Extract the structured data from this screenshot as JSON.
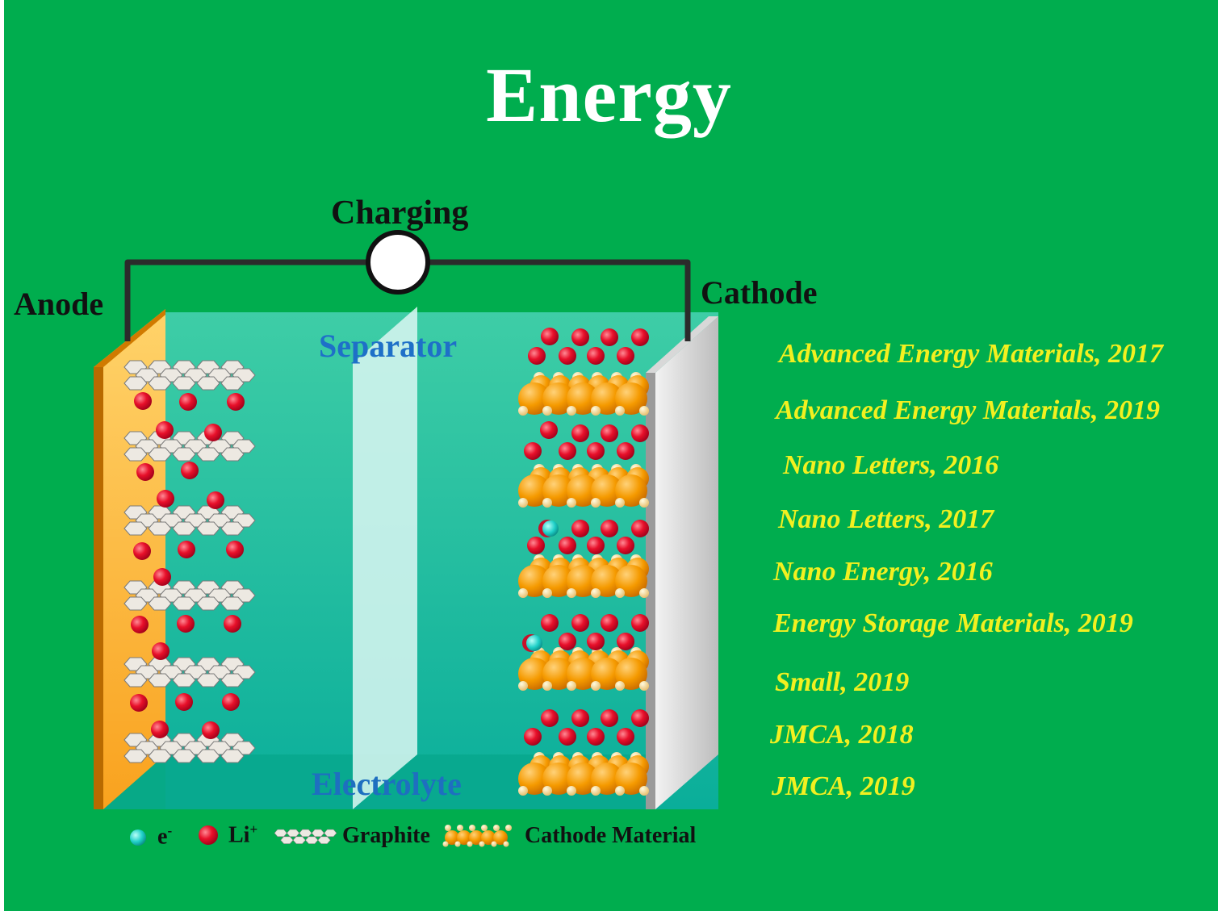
{
  "title": "Energy",
  "labels": {
    "charging": "Charging",
    "anode": "Anode",
    "cathode": "Cathode",
    "separator": "Separator",
    "electrolyte": "Electrolyte"
  },
  "legend": {
    "electron": "e",
    "electron_sup": "-",
    "lithium": "Li",
    "lithium_sup": "+",
    "graphite": "Graphite",
    "cathode_material": "Cathode Material"
  },
  "references": [
    "Advanced Energy Materials, 2017",
    "Advanced Energy Materials, 2019",
    "Nano Letters, 2016",
    "Nano Letters, 2017",
    "Nano Energy, 2016",
    "Energy Storage Materials, 2019",
    "Small, 2019",
    "JMCA, 2018",
    "JMCA, 2019"
  ],
  "colors": {
    "background": "#00AD4E",
    "reference_text": "#F2F020",
    "separator_text": "#1E70C8",
    "lithium_ion": "#E8102A",
    "electron": "#1FD0C8",
    "cathode_particle": "#F59A00",
    "anode_plate": "#F5A623",
    "electrolyte": "#2BC4A8"
  }
}
